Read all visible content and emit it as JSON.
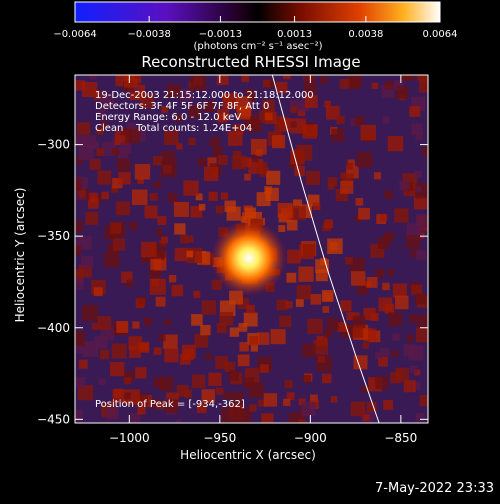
{
  "chart_data": {
    "type": "heatmap",
    "title": "Reconstructed RHESSI Image",
    "xlabel": "Heliocentric X (arcsec)",
    "ylabel": "Heliocentric Y (arcsec)",
    "xlim": [
      -1030,
      -835
    ],
    "ylim": [
      -452,
      -262
    ],
    "xticks": [
      -1000,
      -950,
      -900,
      -850
    ],
    "xtick_labels": [
      "−1000",
      "−950",
      "−900",
      "−850"
    ],
    "yticks": [
      -450,
      -400,
      -350,
      -300
    ],
    "ytick_labels": [
      "−450",
      "−400",
      "−350",
      "−300"
    ],
    "colorbar": {
      "range": [
        -0.0064,
        0.0064
      ],
      "ticks": [
        -0.0064,
        -0.0038,
        -0.0013,
        0.0013,
        0.0038,
        0.0064
      ],
      "tick_labels": [
        "−0.0064",
        "−0.0038",
        "−0.0013",
        "0.0013",
        "0.0038",
        "0.0064"
      ],
      "unit_label": "(photons cm⁻² s⁻¹ asec⁻²)"
    },
    "info_lines": [
      "19-Dec-2003 21:15:12.000 to 21:18:12.000",
      "Detectors: 3F 4F 5F 6F 7F 8F, Att 0",
      "Energy Range: 6.0 - 12.0 keV",
      "Clean    Total counts: 1.24E+04"
    ],
    "peak": {
      "x": -934,
      "y": -362
    },
    "peak_label": "Position of Peak = [-934,-362]",
    "limb": [
      [
        -921,
        -262
      ],
      [
        -905,
        -320
      ],
      [
        -890,
        -370
      ],
      [
        -875,
        -415
      ],
      [
        -862,
        -452
      ]
    ],
    "colors": {
      "min": "#2010ff",
      "mid": "#000000",
      "max": "#ffffff"
    }
  },
  "footer": {
    "timestamp": "7-May-2022 23:33"
  }
}
